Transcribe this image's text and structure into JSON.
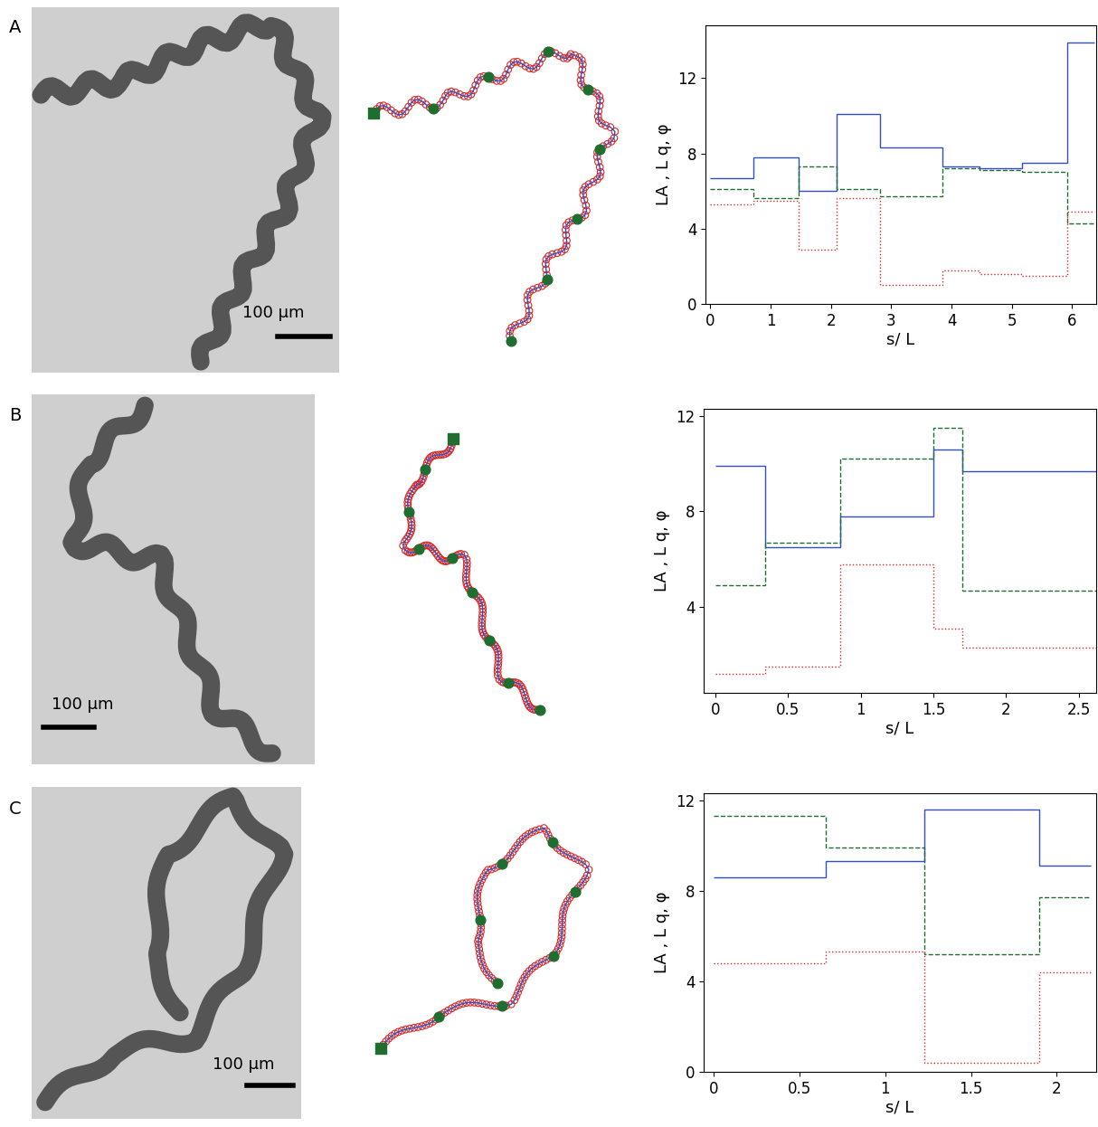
{
  "panel_labels": [
    "A",
    "B",
    "C"
  ],
  "scale_bar_labels": [
    "100 µm",
    "100 µm",
    "100 µm"
  ],
  "chart_data": [
    {
      "type": "step",
      "x_label": "s/ L",
      "y_label": "LA , L q, φ",
      "bins": [
        0,
        0.72,
        1.47,
        2.1,
        2.82,
        3.85,
        4.47,
        5.17,
        5.92,
        6.37
      ],
      "series": [
        {
          "color": "#2f4fc4",
          "line_style": "solid",
          "values": [
            6.7,
            7.8,
            6.0,
            10.1,
            8.3,
            7.3,
            7.2,
            7.5,
            13.9
          ]
        },
        {
          "color": "#1f6e30",
          "line_style": "dashed",
          "values": [
            6.1,
            5.6,
            7.3,
            6.1,
            5.7,
            7.2,
            7.1,
            7.0,
            4.3
          ]
        },
        {
          "color": "#d42a2a",
          "line_style": "dotted",
          "values": [
            5.3,
            5.5,
            2.9,
            5.6,
            1.0,
            1.8,
            1.6,
            1.5,
            4.9
          ]
        }
      ],
      "xlim": [
        -0.08,
        6.4
      ],
      "ylim": [
        0,
        14.8
      ],
      "xticks": [
        0,
        1,
        2,
        3,
        4,
        5,
        6
      ],
      "yticks": [
        0,
        4,
        8,
        12
      ]
    },
    {
      "type": "step",
      "x_label": "s/ L",
      "y_label": "LA , L q, φ",
      "bins": [
        0,
        0.34,
        0.86,
        1.5,
        1.7,
        2.62
      ],
      "series": [
        {
          "color": "#2f4fc4",
          "line_style": "solid",
          "values": [
            9.9,
            6.5,
            7.8,
            10.6,
            9.7
          ]
        },
        {
          "color": "#1f6e30",
          "line_style": "dashed",
          "values": [
            4.9,
            6.7,
            10.2,
            11.5,
            4.7
          ]
        },
        {
          "color": "#d42a2a",
          "line_style": "dotted",
          "values": [
            1.2,
            1.5,
            5.8,
            3.1,
            2.3
          ]
        }
      ],
      "xlim": [
        -0.08,
        2.62
      ],
      "ylim": [
        0.4,
        12.3
      ],
      "xticks": [
        0,
        0.5,
        1,
        1.5,
        2,
        2.5
      ],
      "yticks": [
        4,
        8,
        12
      ]
    },
    {
      "type": "step",
      "x_label": "s/ L",
      "y_label": "LA , L q, φ",
      "bins": [
        0,
        0.65,
        1.23,
        1.9,
        2.2
      ],
      "series": [
        {
          "color": "#2f4fc4",
          "line_style": "solid",
          "values": [
            8.6,
            9.3,
            11.6,
            9.1
          ]
        },
        {
          "color": "#1f6e30",
          "line_style": "dashed",
          "values": [
            11.3,
            9.9,
            5.2,
            7.7
          ]
        },
        {
          "color": "#d42a2a",
          "line_style": "dotted",
          "values": [
            4.8,
            5.3,
            0.4,
            4.4
          ]
        }
      ],
      "xlim": [
        -0.06,
        2.23
      ],
      "ylim": [
        0,
        12.3
      ],
      "xticks": [
        0,
        0.5,
        1,
        1.5,
        2
      ],
      "yticks": [
        0,
        4,
        8,
        12
      ]
    }
  ]
}
